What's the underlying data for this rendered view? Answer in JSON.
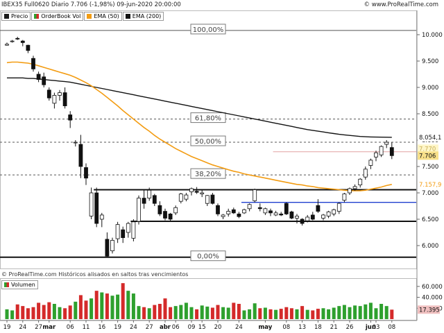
{
  "header": {
    "title": "IBEX35 Full0620 Diario 7.706 (-1,98%) 09-jun-2020 20:00:00",
    "brand": "© www.ProRealTime.com"
  },
  "legend": [
    {
      "label": "Precio",
      "color": "#1a1a1a"
    },
    {
      "label": "OrderBook Vol",
      "color": "split"
    },
    {
      "label": "EMA (50)",
      "color": "#f39c12"
    },
    {
      "label": "EMA (200)",
      "color": "#111111"
    }
  ],
  "footer_note": "© ProRealTime.com  Históricos alisados en saltos tras vencimientos",
  "volume_label": "Volumen",
  "colors": {
    "up": "#ffffff",
    "down": "#111111",
    "ema50": "#f39c12",
    "ema200": "#111111",
    "vol_up": "#2ea02e",
    "vol_down": "#d42a2a",
    "price_label_bg": "#f7e08a",
    "ema50_label": "#f39c12",
    "support_blue": "#1f3fcf",
    "ref_line_red": "#e2a0a0"
  },
  "chart_data": {
    "type": "candlestick",
    "yaxis_ticks": [
      "10.000",
      "9.500",
      "9.000",
      "8.500",
      "8.000",
      "7.500",
      "7.000",
      "6.500",
      "6.000"
    ],
    "ylim": [
      5800,
      10050
    ],
    "xaxis_ticks": [
      {
        "label": "19",
        "i": 0
      },
      {
        "label": "24",
        "i": 3
      },
      {
        "label": "27",
        "i": 6
      },
      {
        "label": "mar",
        "i": 8
      },
      {
        "label": "06",
        "i": 12
      },
      {
        "label": "11",
        "i": 15
      },
      {
        "label": "16",
        "i": 18
      },
      {
        "label": "19",
        "i": 21
      },
      {
        "label": "24",
        "i": 24
      },
      {
        "label": "27",
        "i": 27
      },
      {
        "label": "abr",
        "i": 30
      },
      {
        "label": "06",
        "i": 32
      },
      {
        "label": "09",
        "i": 35
      },
      {
        "label": "15",
        "i": 37
      },
      {
        "label": "20",
        "i": 40
      },
      {
        "label": "24",
        "i": 44
      },
      {
        "label": "may",
        "i": 49
      },
      {
        "label": "08",
        "i": 53
      },
      {
        "label": "13",
        "i": 56
      },
      {
        "label": "18",
        "i": 59
      },
      {
        "label": "21",
        "i": 62
      },
      {
        "label": "26",
        "i": 65
      },
      {
        "label": "jun",
        "i": 69
      },
      {
        "label": "03",
        "i": 70
      },
      {
        "label": "08",
        "i": 73
      }
    ],
    "fib_levels": [
      {
        "label": "100,00%",
        "value": 10080
      },
      {
        "label": "61,80%",
        "value": 8400
      },
      {
        "label": "50,00%",
        "value": 7960
      },
      {
        "label": "38,20%",
        "value": 7340
      },
      {
        "label": "0,00%",
        "value": 5780
      }
    ],
    "horizontal_lines": [
      {
        "name": "resistance",
        "value": 7060,
        "from": 17,
        "to": 76
      },
      {
        "name": "support",
        "value": 6460,
        "from": 24,
        "to": 76
      },
      {
        "name": "blue-support",
        "value": 6820,
        "from": 45,
        "to": 76
      },
      {
        "name": "red-ref",
        "value": 7780,
        "from": 51,
        "to": 76
      }
    ],
    "last_price": "7.706",
    "ema50_value": "7.157,9",
    "ema200_value": "8.054,1",
    "dashed_values": [
      "7.770",
      "7.757"
    ],
    "volume_ticks": [
      "60.000",
      "40.000",
      "20.000"
    ],
    "volume_last": "17.395",
    "candles": [
      [
        9800,
        9850,
        9790,
        9820
      ],
      [
        9870,
        9900,
        9850,
        9880
      ],
      [
        9930,
        9960,
        9900,
        9920
      ],
      [
        9880,
        9900,
        9780,
        9850
      ],
      [
        9800,
        9810,
        9650,
        9700
      ],
      [
        9550,
        9600,
        9300,
        9350
      ],
      [
        9250,
        9300,
        9100,
        9150
      ],
      [
        9200,
        9280,
        9000,
        9050
      ],
      [
        8950,
        9000,
        8750,
        8800
      ],
      [
        8700,
        8900,
        8600,
        8850
      ],
      [
        8850,
        8950,
        8750,
        8900
      ],
      [
        8900,
        9000,
        8600,
        8650
      ],
      [
        8480,
        8550,
        8230,
        8380
      ],
      [
        7950,
        8000,
        7880,
        7960
      ],
      [
        7920,
        8100,
        7280,
        7500
      ],
      [
        7480,
        7560,
        7150,
        7280
      ],
      [
        6560,
        7100,
        6500,
        7000
      ],
      [
        7000,
        7100,
        6350,
        6420
      ],
      [
        6500,
        6620,
        6350,
        6580
      ],
      [
        6120,
        6250,
        5780,
        5800
      ],
      [
        5900,
        6150,
        5850,
        6100
      ],
      [
        6130,
        6450,
        6050,
        6400
      ],
      [
        6300,
        6360,
        6050,
        6150
      ],
      [
        6250,
        6450,
        6150,
        6420
      ],
      [
        6140,
        6500,
        6080,
        6450
      ],
      [
        6460,
        6950,
        6400,
        6900
      ],
      [
        6900,
        7050,
        6700,
        6800
      ],
      [
        6900,
        7100,
        6850,
        7050
      ],
      [
        6950,
        6980,
        6750,
        6800
      ],
      [
        6760,
        6840,
        6560,
        6600
      ],
      [
        6650,
        6700,
        6480,
        6520
      ],
      [
        6600,
        6620,
        6450,
        6500
      ],
      [
        6620,
        6760,
        6580,
        6720
      ],
      [
        6840,
        7000,
        6800,
        6980
      ],
      [
        6880,
        7000,
        6840,
        6960
      ],
      [
        7020,
        7100,
        6950,
        7080
      ],
      [
        7030,
        7110,
        6980,
        7010
      ],
      [
        6980,
        7060,
        6920,
        7000
      ],
      [
        6800,
        6960,
        6750,
        6950
      ],
      [
        6960,
        7000,
        6780,
        6800
      ],
      [
        6760,
        6800,
        6560,
        6600
      ],
      [
        6550,
        6600,
        6500,
        6580
      ],
      [
        6600,
        6700,
        6550,
        6650
      ],
      [
        6680,
        6720,
        6600,
        6620
      ],
      [
        6600,
        6640,
        6520,
        6550
      ],
      [
        6620,
        6700,
        6600,
        6680
      ],
      [
        6700,
        6800,
        6650,
        6780
      ],
      [
        6850,
        7080,
        6820,
        7060
      ],
      [
        6720,
        6800,
        6650,
        6700
      ],
      [
        6620,
        6720,
        6580,
        6700
      ],
      [
        6660,
        6700,
        6560,
        6620
      ],
      [
        6580,
        6660,
        6560,
        6620
      ],
      [
        6600,
        6640,
        6560,
        6580
      ],
      [
        6800,
        6820,
        6580,
        6600
      ],
      [
        6640,
        6660,
        6500,
        6520
      ],
      [
        6520,
        6600,
        6420,
        6560
      ],
      [
        6500,
        6520,
        6380,
        6420
      ],
      [
        6470,
        6580,
        6440,
        6540
      ],
      [
        6580,
        6640,
        6480,
        6500
      ],
      [
        6760,
        6880,
        6620,
        6650
      ],
      [
        6520,
        6600,
        6480,
        6580
      ],
      [
        6560,
        6660,
        6520,
        6640
      ],
      [
        6600,
        6700,
        6560,
        6680
      ],
      [
        6650,
        6820,
        6600,
        6800
      ],
      [
        6860,
        7000,
        6820,
        6980
      ],
      [
        7000,
        7100,
        6960,
        7080
      ],
      [
        7080,
        7160,
        7040,
        7120
      ],
      [
        7150,
        7280,
        7100,
        7260
      ],
      [
        7300,
        7500,
        7250,
        7450
      ],
      [
        7520,
        7650,
        7450,
        7620
      ],
      [
        7680,
        7800,
        7600,
        7760
      ],
      [
        7720,
        7900,
        7680,
        7880
      ],
      [
        7920,
        8000,
        7850,
        7960
      ],
      [
        7860,
        7960,
        7640,
        7706
      ]
    ],
    "ema50": [
      9470,
      9480,
      9480,
      9470,
      9460,
      9440,
      9410,
      9380,
      9350,
      9320,
      9290,
      9260,
      9230,
      9190,
      9140,
      9090,
      9030,
      8960,
      8890,
      8810,
      8730,
      8650,
      8560,
      8480,
      8400,
      8320,
      8240,
      8170,
      8090,
      8020,
      7960,
      7900,
      7840,
      7790,
      7740,
      7690,
      7650,
      7610,
      7570,
      7530,
      7500,
      7470,
      7440,
      7410,
      7390,
      7360,
      7340,
      7320,
      7300,
      7280,
      7260,
      7240,
      7220,
      7200,
      7180,
      7160,
      7150,
      7130,
      7120,
      7100,
      7090,
      7080,
      7070,
      7060,
      7050,
      7040,
      7040,
      7040,
      7050,
      7070,
      7090,
      7110,
      7140,
      7160
    ],
    "ema200": [
      9180,
      9180,
      9180,
      9180,
      9170,
      9170,
      9160,
      9150,
      9140,
      9130,
      9120,
      9110,
      9100,
      9080,
      9060,
      9040,
      9020,
      9000,
      8980,
      8960,
      8940,
      8920,
      8900,
      8880,
      8860,
      8840,
      8820,
      8800,
      8780,
      8760,
      8740,
      8720,
      8700,
      8680,
      8660,
      8640,
      8620,
      8600,
      8580,
      8560,
      8540,
      8520,
      8500,
      8480,
      8460,
      8440,
      8420,
      8400,
      8380,
      8360,
      8340,
      8320,
      8300,
      8280,
      8260,
      8240,
      8220,
      8200,
      8185,
      8170,
      8155,
      8140,
      8125,
      8110,
      8100,
      8090,
      8080,
      8070,
      8065,
      8060,
      8058,
      8056,
      8055,
      8054
    ],
    "volume": [
      18000,
      16000,
      27000,
      24000,
      20000,
      22000,
      30000,
      26000,
      31000,
      28000,
      22000,
      20000,
      25000,
      32000,
      44000,
      34000,
      38000,
      52000,
      49000,
      47000,
      43000,
      45000,
      66000,
      52000,
      47000,
      24000,
      22000,
      20000,
      26000,
      28000,
      38000,
      22000,
      24000,
      26000,
      30000,
      22000,
      18000,
      25000,
      23000,
      21000,
      26000,
      22000,
      21000,
      30000,
      28000,
      16000,
      18000,
      29000,
      20000,
      21000,
      18000,
      17000,
      19000,
      22000,
      20000,
      18000,
      24000,
      17000,
      16000,
      19000,
      20000,
      18000,
      21000,
      24000,
      26000,
      22000,
      25000,
      24000,
      27000,
      30000,
      20000,
      28000,
      24000,
      17395
    ]
  }
}
